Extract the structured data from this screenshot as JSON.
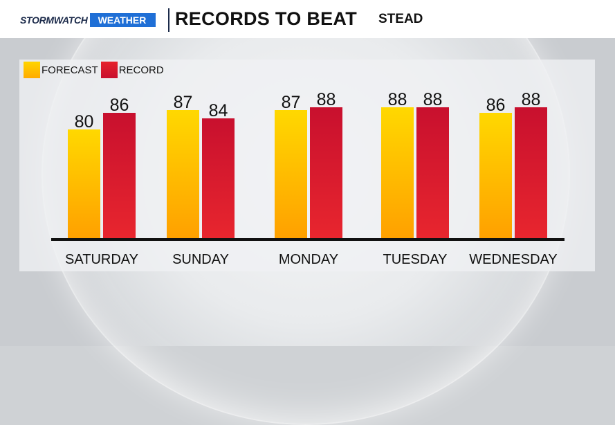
{
  "header": {
    "brand_storm": "STORMWATCH",
    "brand_weather": "WEATHER",
    "title": "RECORDS TO BEAT",
    "location": "STEAD"
  },
  "legend": {
    "forecast": "FORECAST",
    "record": "RECORD",
    "placement": "top-left"
  },
  "colors": {
    "forecast": "#ffc000",
    "record": "#d81b2a"
  },
  "chart_data": {
    "type": "bar",
    "categories": [
      "SATURDAY",
      "SUNDAY",
      "MONDAY",
      "TUESDAY",
      "WEDNESDAY"
    ],
    "series": [
      {
        "name": "FORECAST",
        "values": [
          80,
          87,
          87,
          88,
          86
        ]
      },
      {
        "name": "RECORD",
        "values": [
          86,
          84,
          88,
          88,
          88
        ]
      }
    ],
    "title": "RECORDS TO BEAT",
    "xlabel": "",
    "ylabel": "",
    "grid": false
  }
}
